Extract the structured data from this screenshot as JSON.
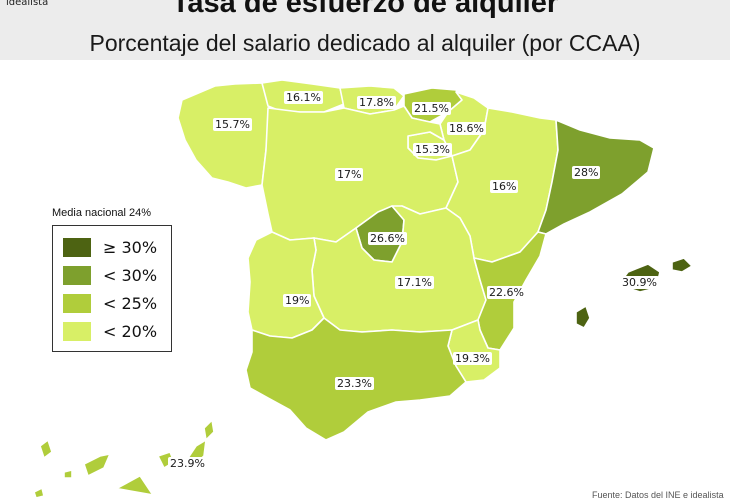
{
  "header": {
    "brand": "idealista",
    "title": "Tasa de esfuerzo de alquiler",
    "subtitle": "Porcentaje del salario dedicado al alquiler (por CCAA)"
  },
  "legend": {
    "title": "Media nacional 24%",
    "items": [
      {
        "label": "≥ 30%",
        "color": "#4d6312"
      },
      {
        "label": "< 30%",
        "color": "#7ea02d"
      },
      {
        "label": "< 25%",
        "color": "#b0cd3b"
      },
      {
        "label": "< 20%",
        "color": "#d8ef66"
      }
    ]
  },
  "regions": [
    {
      "name": "Galicia",
      "value": "15.7%",
      "color": "#d8ef66"
    },
    {
      "name": "Asturias",
      "value": "16.1%",
      "color": "#d8ef66"
    },
    {
      "name": "Cantabria",
      "value": "17.8%",
      "color": "#d8ef66"
    },
    {
      "name": "País Vasco",
      "value": "21.5%",
      "color": "#b0cd3b"
    },
    {
      "name": "Navarra",
      "value": "18.6%",
      "color": "#d8ef66"
    },
    {
      "name": "La Rioja",
      "value": "15.3%",
      "color": "#d8ef66"
    },
    {
      "name": "Castilla y León",
      "value": "17%",
      "color": "#d8ef66"
    },
    {
      "name": "Aragón",
      "value": "16%",
      "color": "#d8ef66"
    },
    {
      "name": "Cataluña",
      "value": "28%",
      "color": "#7ea02d"
    },
    {
      "name": "Madrid",
      "value": "26.6%",
      "color": "#7ea02d"
    },
    {
      "name": "Castilla-La Mancha",
      "value": "17.1%",
      "color": "#d8ef66"
    },
    {
      "name": "Extremadura",
      "value": "19%",
      "color": "#d8ef66"
    },
    {
      "name": "Comunidad Valenciana",
      "value": "22.6%",
      "color": "#b0cd3b"
    },
    {
      "name": "Murcia",
      "value": "19.3%",
      "color": "#d8ef66"
    },
    {
      "name": "Andalucía",
      "value": "23.3%",
      "color": "#b0cd3b"
    },
    {
      "name": "Baleares",
      "value": "30.9%",
      "color": "#4d6312"
    },
    {
      "name": "Canarias",
      "value": "23.9%",
      "color": "#b0cd3b"
    }
  ],
  "source": "Fuente: Datos del INE e idealista"
}
